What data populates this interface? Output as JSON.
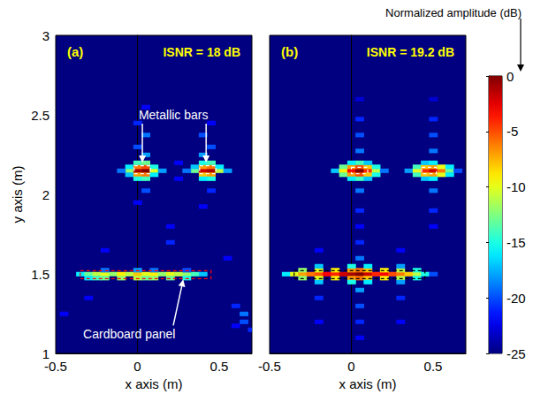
{
  "chart_data": [
    {
      "type": "heatmap",
      "panel": "(a)",
      "title": "ISNR = 18 dB",
      "xlabel": "x axis (m)",
      "ylabel": "y axis (m)",
      "xlim": [
        -0.5,
        0.7
      ],
      "xticks": [
        -0.5,
        0,
        0.5
      ],
      "ylim": [
        1,
        3
      ],
      "yticks": [
        1,
        1.5,
        2,
        2.5,
        3
      ],
      "cells": [
        [
          -0.05,
          2.15,
          -12
        ],
        [
          0,
          2.15,
          -1
        ],
        [
          0.05,
          2.15,
          0
        ],
        [
          0.1,
          2.15,
          -10
        ],
        [
          -0.05,
          2.175,
          -16
        ],
        [
          0,
          2.175,
          -6
        ],
        [
          0.05,
          2.175,
          -5
        ],
        [
          0.1,
          2.175,
          -15
        ],
        [
          -0.05,
          2.125,
          -17
        ],
        [
          0,
          2.125,
          -7
        ],
        [
          0.05,
          2.125,
          -6
        ],
        [
          0.1,
          2.125,
          -16
        ],
        [
          0,
          2.2,
          -14
        ],
        [
          0.05,
          2.2,
          -13
        ],
        [
          0,
          2.1,
          -15
        ],
        [
          0.05,
          2.1,
          -14
        ],
        [
          -0.1,
          2.15,
          -19
        ],
        [
          0.15,
          2.15,
          -18
        ],
        [
          0.35,
          2.15,
          -13
        ],
        [
          0.4,
          2.15,
          -2
        ],
        [
          0.45,
          2.15,
          -1
        ],
        [
          0.5,
          2.15,
          -11
        ],
        [
          0.35,
          2.175,
          -17
        ],
        [
          0.4,
          2.175,
          -7
        ],
        [
          0.45,
          2.175,
          -6
        ],
        [
          0.5,
          2.175,
          -16
        ],
        [
          0.4,
          2.125,
          -8
        ],
        [
          0.45,
          2.125,
          -7
        ],
        [
          0.4,
          2.2,
          -15
        ],
        [
          0.45,
          2.2,
          -14
        ],
        [
          0.4,
          2.1,
          -16
        ],
        [
          0.45,
          2.1,
          -15
        ],
        [
          0.3,
          2.15,
          -19
        ],
        [
          0.55,
          2.15,
          -18
        ],
        [
          0.05,
          2.25,
          -18
        ],
        [
          0,
          2.3,
          -20
        ],
        [
          0.05,
          2.375,
          -19
        ],
        [
          0,
          2.45,
          -21
        ],
        [
          0.05,
          2.55,
          -22
        ],
        [
          0.4,
          2.25,
          -18
        ],
        [
          0.45,
          2.3,
          -20
        ],
        [
          0.4,
          2.375,
          -20
        ],
        [
          0.45,
          2.45,
          -22
        ],
        [
          0.25,
          2.2,
          -22
        ],
        [
          0.25,
          2.1,
          -22
        ],
        [
          0.05,
          2.025,
          -20
        ],
        [
          0,
          1.95,
          -22
        ],
        [
          0.45,
          2.025,
          -21
        ],
        [
          0.4,
          1.925,
          -22
        ],
        [
          -0.35,
          1.5,
          -16
        ],
        [
          -0.3,
          1.5,
          -13
        ],
        [
          -0.25,
          1.5,
          -11
        ],
        [
          -0.2,
          1.5,
          -10
        ],
        [
          -0.15,
          1.5,
          -12
        ],
        [
          -0.1,
          1.5,
          -9
        ],
        [
          -0.05,
          1.5,
          -11
        ],
        [
          0,
          1.5,
          -8
        ],
        [
          0.05,
          1.5,
          -10
        ],
        [
          0.1,
          1.5,
          -9
        ],
        [
          0.15,
          1.5,
          -12
        ],
        [
          0.2,
          1.5,
          -10
        ],
        [
          0.25,
          1.5,
          -11
        ],
        [
          0.3,
          1.5,
          -12
        ],
        [
          0.35,
          1.5,
          -14
        ],
        [
          0.4,
          1.5,
          -17
        ],
        [
          -0.3,
          1.475,
          -16
        ],
        [
          -0.25,
          1.475,
          -14
        ],
        [
          -0.2,
          1.475,
          -13
        ],
        [
          -0.1,
          1.475,
          -12
        ],
        [
          0,
          1.475,
          -11
        ],
        [
          0.05,
          1.475,
          -13
        ],
        [
          0.1,
          1.475,
          -12
        ],
        [
          0.2,
          1.475,
          -13
        ],
        [
          0.3,
          1.475,
          -15
        ],
        [
          -0.2,
          1.525,
          -19
        ],
        [
          0,
          1.525,
          -18
        ],
        [
          0.1,
          1.525,
          -19
        ],
        [
          0.3,
          1.525,
          -20
        ],
        [
          0.6,
          1.3,
          -21
        ],
        [
          0.65,
          1.25,
          -19
        ],
        [
          0.65,
          1.2,
          -20
        ],
        [
          0.7,
          1.15,
          -21
        ],
        [
          0.6,
          1.175,
          -22
        ],
        [
          -0.3,
          1.35,
          -22
        ],
        [
          -0.45,
          1.25,
          -22
        ],
        [
          0.55,
          1.6,
          -22
        ],
        [
          -0.2,
          1.65,
          -22
        ],
        [
          0.2,
          1.7,
          -21
        ],
        [
          0.2,
          1.8,
          -22
        ]
      ],
      "targets": [
        {
          "x": [
            -0.02,
            0.08
          ],
          "y": [
            2.13,
            2.18
          ],
          "color": "white"
        },
        {
          "x": [
            0.38,
            0.48
          ],
          "y": [
            2.13,
            2.18
          ],
          "color": "white"
        },
        {
          "x": [
            -0.35,
            0.45
          ],
          "y": [
            1.47,
            1.52
          ],
          "color": "red"
        }
      ],
      "annotations": [
        {
          "text": "Metallic bars",
          "x": 0.22,
          "y": 2.5,
          "points_to": [
            [
              0.03,
              2.2
            ],
            [
              0.42,
              2.2
            ]
          ]
        },
        {
          "text": "Cardboard panel",
          "x": -0.05,
          "y": 1.12,
          "points_to": [
            [
              0.28,
              1.465
            ]
          ]
        }
      ]
    },
    {
      "type": "heatmap",
      "panel": "(b)",
      "title": "ISNR = 19.2 dB",
      "xlabel": "x axis (m)",
      "tick_labels": "x",
      "xlim": [
        -0.5,
        0.7
      ],
      "xticks": [
        -0.5,
        0,
        0.5
      ],
      "ylim": [
        1,
        3
      ],
      "yticks": [
        1,
        1.5,
        2,
        2.5,
        3
      ],
      "cells": [
        [
          -0.1,
          2.15,
          -17
        ],
        [
          -0.05,
          2.15,
          -9
        ],
        [
          0,
          2.15,
          -3
        ],
        [
          0.05,
          2.15,
          0
        ],
        [
          0.1,
          2.15,
          -4
        ],
        [
          0.15,
          2.15,
          -11
        ],
        [
          0.2,
          2.15,
          -19
        ],
        [
          -0.05,
          2.125,
          -13
        ],
        [
          0,
          2.125,
          -7
        ],
        [
          0.05,
          2.125,
          -5
        ],
        [
          0.1,
          2.125,
          -8
        ],
        [
          0.15,
          2.125,
          -15
        ],
        [
          -0.05,
          2.175,
          -13
        ],
        [
          0,
          2.175,
          -7
        ],
        [
          0.05,
          2.175,
          -5
        ],
        [
          0.1,
          2.175,
          -8
        ],
        [
          0.15,
          2.175,
          -15
        ],
        [
          0,
          2.1,
          -16
        ],
        [
          0.05,
          2.1,
          -14
        ],
        [
          0.1,
          2.1,
          -17
        ],
        [
          0,
          2.2,
          -16
        ],
        [
          0.05,
          2.2,
          -14
        ],
        [
          0.1,
          2.2,
          -17
        ],
        [
          0.35,
          2.15,
          -18
        ],
        [
          0.4,
          2.15,
          -10
        ],
        [
          0.45,
          2.15,
          -4
        ],
        [
          0.5,
          2.15,
          -2
        ],
        [
          0.55,
          2.15,
          -6
        ],
        [
          0.6,
          2.15,
          -13
        ],
        [
          0.65,
          2.15,
          -20
        ],
        [
          0.4,
          2.125,
          -14
        ],
        [
          0.45,
          2.125,
          -8
        ],
        [
          0.5,
          2.125,
          -7
        ],
        [
          0.55,
          2.125,
          -10
        ],
        [
          0.6,
          2.125,
          -16
        ],
        [
          0.4,
          2.175,
          -14
        ],
        [
          0.45,
          2.175,
          -8
        ],
        [
          0.5,
          2.175,
          -7
        ],
        [
          0.55,
          2.175,
          -10
        ],
        [
          0.6,
          2.175,
          -16
        ],
        [
          0.45,
          2.1,
          -17
        ],
        [
          0.5,
          2.1,
          -16
        ],
        [
          0.45,
          2.2,
          -17
        ],
        [
          0.5,
          2.2,
          -16
        ],
        [
          0.05,
          2.275,
          -19
        ],
        [
          0.05,
          2.375,
          -20
        ],
        [
          0.05,
          2.475,
          -21
        ],
        [
          0.05,
          2.6,
          -23
        ],
        [
          0.5,
          2.275,
          -19
        ],
        [
          0.5,
          2.375,
          -20
        ],
        [
          0.5,
          2.475,
          -21
        ],
        [
          0.5,
          2.6,
          -23
        ],
        [
          0.05,
          2.025,
          -19
        ],
        [
          0.05,
          1.9,
          -21
        ],
        [
          0.05,
          1.8,
          -22
        ],
        [
          0.5,
          2.025,
          -19
        ],
        [
          0.5,
          1.9,
          -21
        ],
        [
          0.5,
          1.8,
          -22
        ],
        [
          -0.4,
          1.5,
          -16
        ],
        [
          -0.35,
          1.5,
          -10
        ],
        [
          -0.3,
          1.5,
          -7
        ],
        [
          -0.25,
          1.5,
          -6
        ],
        [
          -0.2,
          1.5,
          -5
        ],
        [
          -0.15,
          1.5,
          -3
        ],
        [
          -0.1,
          1.5,
          -4
        ],
        [
          -0.05,
          1.5,
          -2
        ],
        [
          0,
          1.5,
          -1
        ],
        [
          0.05,
          1.5,
          0
        ],
        [
          0.1,
          1.5,
          -2
        ],
        [
          0.15,
          1.5,
          -4
        ],
        [
          0.2,
          1.5,
          -3
        ],
        [
          0.25,
          1.5,
          -5
        ],
        [
          0.3,
          1.5,
          -6
        ],
        [
          0.35,
          1.5,
          -8
        ],
        [
          0.4,
          1.5,
          -11
        ],
        [
          0.45,
          1.5,
          -15
        ],
        [
          0.5,
          1.5,
          -20
        ],
        [
          -0.3,
          1.475,
          -12
        ],
        [
          -0.2,
          1.475,
          -10
        ],
        [
          -0.1,
          1.475,
          -9
        ],
        [
          0,
          1.475,
          -7
        ],
        [
          0.05,
          1.475,
          -6
        ],
        [
          0.1,
          1.475,
          -8
        ],
        [
          0.2,
          1.475,
          -9
        ],
        [
          0.3,
          1.475,
          -11
        ],
        [
          0.4,
          1.475,
          -15
        ],
        [
          -0.3,
          1.525,
          -12
        ],
        [
          -0.2,
          1.525,
          -10
        ],
        [
          -0.1,
          1.525,
          -9
        ],
        [
          0,
          1.525,
          -7
        ],
        [
          0.05,
          1.525,
          -6
        ],
        [
          0.1,
          1.525,
          -8
        ],
        [
          0.2,
          1.525,
          -9
        ],
        [
          0.3,
          1.525,
          -11
        ],
        [
          0.4,
          1.525,
          -15
        ],
        [
          -0.2,
          1.45,
          -17
        ],
        [
          0,
          1.45,
          -15
        ],
        [
          0.1,
          1.45,
          -16
        ],
        [
          0.3,
          1.45,
          -18
        ],
        [
          -0.2,
          1.55,
          -17
        ],
        [
          0,
          1.55,
          -15
        ],
        [
          0.1,
          1.55,
          -16
        ],
        [
          0.3,
          1.55,
          -18
        ],
        [
          0.05,
          1.4,
          -18
        ],
        [
          0.05,
          1.3,
          -20
        ],
        [
          0.05,
          1.2,
          -21
        ],
        [
          0.05,
          1.1,
          -22
        ],
        [
          -0.2,
          1.35,
          -21
        ],
        [
          -0.2,
          1.2,
          -22
        ],
        [
          0.3,
          1.35,
          -21
        ],
        [
          0.3,
          1.2,
          -22
        ],
        [
          0.05,
          1.6,
          -19
        ],
        [
          0.05,
          1.7,
          -21
        ],
        [
          -0.2,
          1.65,
          -22
        ],
        [
          0.3,
          1.65,
          -22
        ]
      ],
      "targets": [
        {
          "x": [
            0.0,
            0.1
          ],
          "y": [
            2.13,
            2.17
          ],
          "color": "white"
        },
        {
          "x": [
            0.43,
            0.52
          ],
          "y": [
            2.13,
            2.17
          ],
          "color": "white"
        },
        {
          "x": [
            -0.35,
            0.45
          ],
          "y": [
            1.47,
            1.52
          ],
          "color": "black"
        }
      ]
    }
  ],
  "colorbar": {
    "label": "Normalized amplitude (dB)",
    "lim": [
      -25,
      0
    ],
    "ticks": [
      0,
      -5,
      -10,
      -15,
      -20,
      -25
    ]
  }
}
